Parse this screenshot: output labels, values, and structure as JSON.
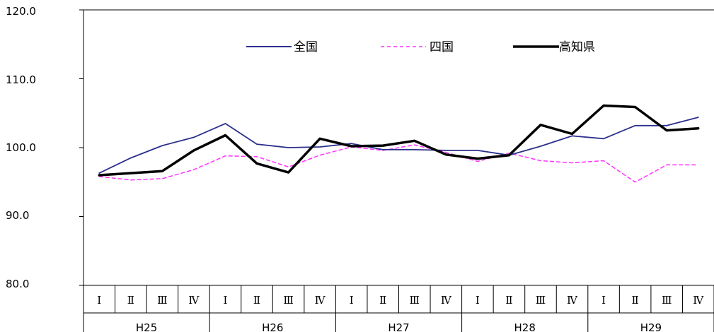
{
  "chart_data": {
    "type": "line",
    "title": "",
    "xlabel": "",
    "ylabel": "",
    "ylim": [
      80,
      120
    ],
    "yticks": [
      "120.0",
      "110.0",
      "100.0",
      "90.0",
      "80.0"
    ],
    "ytick_values": [
      120,
      110,
      100,
      90,
      80
    ],
    "quarters": [
      "Ⅰ",
      "Ⅱ",
      "Ⅲ",
      "Ⅳ",
      "Ⅰ",
      "Ⅱ",
      "Ⅲ",
      "Ⅳ",
      "Ⅰ",
      "Ⅱ",
      "Ⅲ",
      "Ⅳ",
      "Ⅰ",
      "Ⅱ",
      "Ⅲ",
      "Ⅳ",
      "Ⅰ",
      "Ⅱ",
      "Ⅲ",
      "Ⅳ"
    ],
    "years": [
      "H25",
      "H26",
      "H27",
      "H28",
      "H29"
    ],
    "legend_position": "top-center",
    "series": [
      {
        "name": "全国",
        "color": "#2b2f8c",
        "style": "solid",
        "values": [
          96.3,
          98.5,
          100.3,
          101.5,
          103.5,
          100.5,
          100.0,
          100.1,
          100.6,
          99.7,
          99.7,
          99.6,
          99.6,
          98.9,
          100.2,
          101.7,
          101.3,
          103.2,
          103.2,
          104.4
        ]
      },
      {
        "name": "四国",
        "color": "#ff33ff",
        "style": "dashed",
        "values": [
          95.8,
          95.3,
          95.5,
          96.8,
          98.8,
          98.7,
          97.2,
          98.9,
          100.1,
          99.6,
          100.4,
          99.3,
          98.0,
          99.2,
          98.1,
          97.8,
          98.1,
          95.0,
          97.5,
          97.5
        ]
      },
      {
        "name": "高知県",
        "color": "#000000",
        "style": "bold",
        "values": [
          96.0,
          96.3,
          96.6,
          99.6,
          101.8,
          97.7,
          96.4,
          101.3,
          100.2,
          100.3,
          101.0,
          99.0,
          98.4,
          98.9,
          103.3,
          102.0,
          106.1,
          105.9,
          102.5,
          102.8
        ]
      }
    ]
  }
}
